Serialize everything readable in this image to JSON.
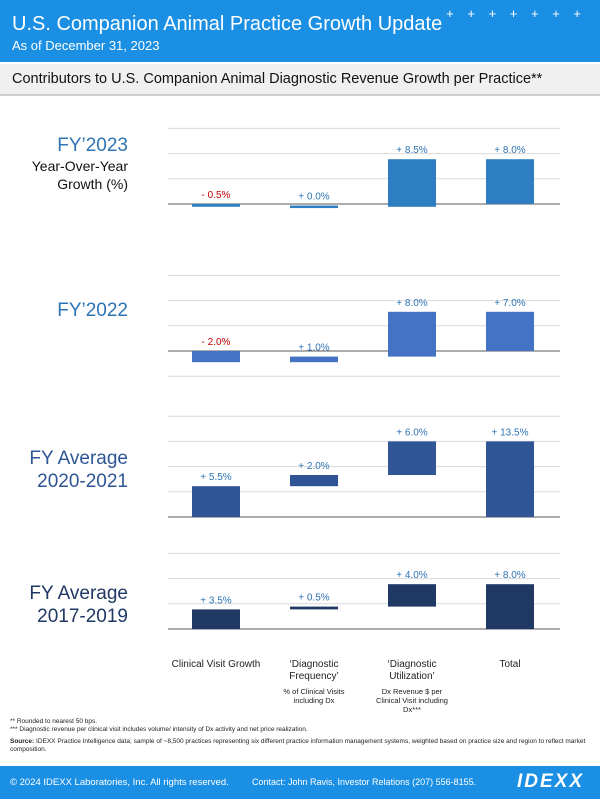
{
  "header": {
    "title": "U.S. Companion Animal Practice Growth Update",
    "as_of": "As of December 31, 2023",
    "decoration": "+ + + + + + +"
  },
  "subhead": "Contributors to U.S. Companion Animal Diagnostic Revenue Growth per Practice**",
  "colors": {
    "header_blue": "#1a8fe3",
    "negative_red": "#c00000",
    "label_blue": "#2e74b5",
    "fy2023": "#2e7fc1",
    "fy2022": "#4472c4",
    "avg2020": "#2f5597",
    "avg2017": "#1f3864"
  },
  "chart_data": {
    "type": "bar",
    "subtype": "waterfall",
    "categories": [
      {
        "label": "Clinical Visit Growth",
        "sub": ""
      },
      {
        "label": "‘Diagnostic Frequency’",
        "sub": "% of Clinical Visits including Dx"
      },
      {
        "label": "‘Diagnostic Utilization’",
        "sub": "Dx Revenue $ per Clinical Visit including Dx***"
      },
      {
        "label": "Total",
        "sub": ""
      }
    ],
    "panels": [
      {
        "title": "FY’2023",
        "subtitle": "Year-Over-Year Growth (%)",
        "color": "#2e7fc1",
        "values": [
          -0.5,
          0.0,
          8.5,
          8.0
        ],
        "labels": [
          "- 0.5%",
          "+ 0.0%",
          "+ 8.5%",
          "+ 8.0%"
        ]
      },
      {
        "title": "FY’2022",
        "subtitle": "",
        "color": "#4472c4",
        "values": [
          -2.0,
          1.0,
          8.0,
          7.0
        ],
        "labels": [
          "- 2.0%",
          "+ 1.0%",
          "+ 8.0%",
          "+ 7.0%"
        ]
      },
      {
        "title": "FY Average 2020-2021",
        "subtitle": "",
        "color": "#2f5597",
        "values": [
          5.5,
          2.0,
          6.0,
          13.5
        ],
        "labels": [
          "+ 5.5%",
          "+ 2.0%",
          "+ 6.0%",
          "+ 13.5%"
        ]
      },
      {
        "title": "FY Average 2017-2019",
        "subtitle": "",
        "color": "#1f3864",
        "values": [
          3.5,
          0.5,
          4.0,
          8.0
        ],
        "labels": [
          "+ 3.5%",
          "+ 0.5%",
          "+ 4.0%",
          "+ 8.0%"
        ]
      }
    ],
    "grid": true
  },
  "notes": {
    "n1": "** Rounded to nearest 50 bps.",
    "n2": "*** Diagnostic revenue per clinical visit includes volume/ intensity of Dx activity and net price realization.",
    "source_label": "Source:",
    "source_text": "IDEXX Practice Intelligence data; sample of ~8,500 practices representing six different practice information management systems, weighted based on practice size and region to reflect market composition."
  },
  "footer": {
    "copyright": "© 2024 IDEXX Laboratories, Inc. All rights reserved.",
    "contact": "Contact: John Ravis, Investor Relations (207) 556-8155.",
    "logo": "IDEXX"
  }
}
